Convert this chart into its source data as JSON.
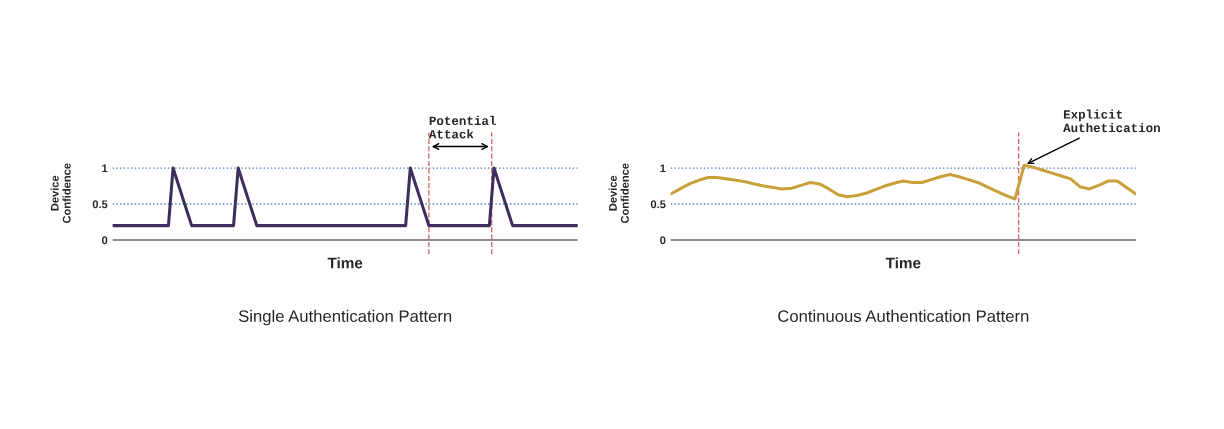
{
  "chart_data": [
    {
      "type": "line",
      "title": "Single Authentication Pattern",
      "xlabel": "Time",
      "ylabel": "Device\nConfidence",
      "categories": [
        null,
        null,
        null,
        null,
        null,
        null,
        null,
        null,
        null,
        null,
        null,
        null,
        null,
        null,
        null,
        null,
        null,
        null,
        null,
        null,
        null,
        null,
        null,
        null,
        null,
        null,
        null,
        null,
        null,
        null,
        null,
        null,
        null,
        null,
        null,
        null,
        null,
        null,
        null,
        null,
        null,
        null,
        null,
        null,
        null,
        null,
        null,
        null,
        null,
        null,
        null,
        null,
        null,
        null,
        null,
        null,
        null,
        null,
        null,
        null,
        null,
        null,
        null,
        null,
        null,
        null,
        null,
        null,
        null,
        null,
        null,
        null,
        null,
        null,
        null,
        null,
        null,
        null,
        null,
        null,
        null,
        null,
        null,
        null,
        null,
        null,
        null,
        null,
        null,
        null,
        null,
        null,
        null,
        null,
        null,
        null,
        null,
        null,
        null,
        null,
        null
      ],
      "series": [
        {
          "color": "#3d2e5c",
          "values": [
            0.2,
            0.2,
            0.2,
            0.2,
            0.2,
            0.2,
            0.2,
            0.2,
            0.2,
            0.2,
            0.2,
            0.2,
            0.2,
            1.0,
            0.8,
            0.6,
            0.4,
            0.2,
            0.2,
            0.2,
            0.2,
            0.2,
            0.2,
            0.2,
            0.2,
            0.2,
            0.2,
            1.0,
            0.8,
            0.6,
            0.4,
            0.2,
            0.2,
            0.2,
            0.2,
            0.2,
            0.2,
            0.2,
            0.2,
            0.2,
            0.2,
            0.2,
            0.2,
            0.2,
            0.2,
            0.2,
            0.2,
            0.2,
            0.2,
            0.2,
            0.2,
            0.2,
            0.2,
            0.2,
            0.2,
            0.2,
            0.2,
            0.2,
            0.2,
            0.2,
            0.2,
            0.2,
            0.2,
            0.2,
            1.0,
            0.8,
            0.6,
            0.4,
            0.2,
            0.2,
            0.2,
            0.2,
            0.2,
            0.2,
            0.2,
            0.2,
            0.2,
            0.2,
            0.2,
            0.2,
            0.2,
            0.2,
            1.0,
            0.8,
            0.6,
            0.4,
            0.2,
            0.2,
            0.2,
            0.2,
            0.2,
            0.2,
            0.2,
            0.2,
            0.2,
            0.2,
            0.2,
            0.2,
            0.2,
            0.2,
            0.2
          ]
        }
      ],
      "ylim": [
        -0.2,
        1.5
      ],
      "yticks": [
        0,
        0.5,
        1
      ],
      "tick_labels": "y",
      "grid": false,
      "legend": false,
      "ref_lines": [
        {
          "axis": "y",
          "value": 0,
          "color": "#8c8c8c",
          "line_style": "solid"
        },
        {
          "axis": "y",
          "value": 0.5,
          "color": "#4a7fb5",
          "line_style": "dotted"
        },
        {
          "axis": "y",
          "value": 1,
          "color": "#4a7fb5",
          "line_style": "dotted"
        }
      ],
      "annotations": [
        "Potential\nAttack"
      ]
    },
    {
      "type": "line",
      "title": "Continuous Authentication Pattern",
      "xlabel": "Time",
      "ylabel": "Device\nConfidence",
      "categories": [
        null,
        null,
        null,
        null,
        null,
        null,
        null,
        null,
        null,
        null,
        null,
        null,
        null,
        null,
        null,
        null,
        null,
        null,
        null,
        null,
        null,
        null,
        null,
        null,
        null,
        null,
        null,
        null,
        null,
        null,
        null,
        null,
        null,
        null,
        null,
        null,
        null,
        null,
        null,
        null,
        null,
        null,
        null,
        null,
        null,
        null,
        null,
        null,
        null,
        null,
        null
      ],
      "series": [
        {
          "color": "#c9a13a",
          "values": [
            0.64,
            0.71,
            0.78,
            0.83,
            0.87,
            0.87,
            0.85,
            0.83,
            0.81,
            0.78,
            0.75,
            0.73,
            0.71,
            0.72,
            0.76,
            0.8,
            0.78,
            0.71,
            0.63,
            0.6,
            0.62,
            0.65,
            0.7,
            0.75,
            0.79,
            0.82,
            0.8,
            0.8,
            0.84,
            0.88,
            0.91,
            0.88,
            0.84,
            0.8,
            0.74,
            0.68,
            0.62,
            0.57,
            1.04,
            1.01,
            0.97,
            0.93,
            0.89,
            0.85,
            0.74,
            0.71,
            0.76,
            0.82,
            0.82,
            0.73,
            0.64
          ]
        }
      ],
      "ylim": [
        -0.2,
        1.5
      ],
      "yticks": [
        0,
        0.5,
        1
      ],
      "tick_labels": "y",
      "grid": false,
      "legend": false,
      "ref_lines": [
        {
          "axis": "y",
          "value": 0,
          "color": "#8c8c8c",
          "line_style": "solid"
        },
        {
          "axis": "y",
          "value": 0.5,
          "color": "#4a7fb5",
          "line_style": "dotted"
        },
        {
          "axis": "y",
          "value": 1,
          "color": "#4a7fb5",
          "line_style": "dotted"
        }
      ],
      "annotations": [
        "Explicit\nAuthetication"
      ]
    }
  ]
}
